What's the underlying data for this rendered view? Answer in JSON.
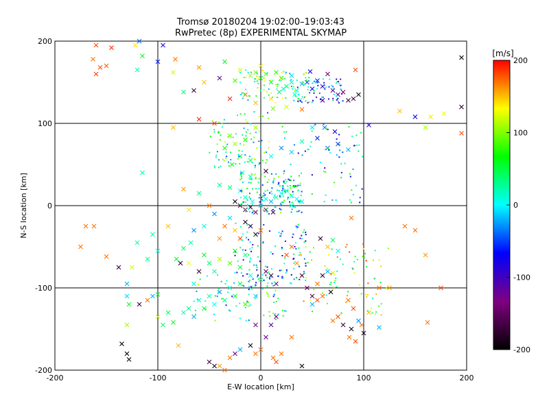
{
  "chart_data": {
    "type": "scatter",
    "title": "Tromsø 20180204 19:02:00–19:03:43",
    "subtitle": "RwPretec (8p) EXPERIMENTAL SKYMAP",
    "xlabel": "E-W location [km]",
    "ylabel": "N-S location [km]",
    "xlim": [
      -200,
      200
    ],
    "ylim": [
      -200,
      200
    ],
    "xticks": [
      -200,
      -100,
      0,
      100,
      200
    ],
    "yticks": [
      -200,
      -100,
      0,
      100,
      200
    ],
    "grid": true,
    "colorbar": {
      "label": "[m/s]",
      "min": -200,
      "max": 200,
      "ticks": [
        200,
        100,
        0,
        -100,
        -200
      ],
      "colormap": [
        "#000000",
        "#800080",
        "#0000ff",
        "#00ffff",
        "#00ff00",
        "#ffff00",
        "#ff0000"
      ]
    },
    "marker_legend_note": "",
    "points": [
      [
        -160,
        195,
        180,
        "x"
      ],
      [
        -145,
        192,
        190,
        "x"
      ],
      [
        -122,
        195,
        140,
        "x"
      ],
      [
        -118,
        200,
        -40,
        "x"
      ],
      [
        -95,
        195,
        -90,
        "x"
      ],
      [
        -163,
        178,
        170,
        "x"
      ],
      [
        -156,
        168,
        180,
        "x"
      ],
      [
        -150,
        170,
        175,
        "x"
      ],
      [
        -160,
        160,
        185,
        "x"
      ],
      [
        -120,
        165,
        20,
        "x"
      ],
      [
        -115,
        182,
        60,
        "x"
      ],
      [
        -100,
        175,
        -60,
        "x"
      ],
      [
        -83,
        178,
        170,
        "x"
      ],
      [
        -85,
        162,
        120,
        "x"
      ],
      [
        -60,
        168,
        160,
        "x"
      ],
      [
        -55,
        150,
        150,
        "x"
      ],
      [
        -40,
        155,
        -120,
        "x"
      ],
      [
        -25,
        152,
        80,
        "x"
      ],
      [
        -20,
        165,
        120,
        "x"
      ],
      [
        -10,
        158,
        110,
        "x"
      ],
      [
        -5,
        162,
        100,
        "x"
      ],
      [
        0,
        155,
        60,
        "x"
      ],
      [
        5,
        160,
        90,
        "x"
      ],
      [
        10,
        150,
        50,
        "x"
      ],
      [
        15,
        162,
        75,
        "x"
      ],
      [
        20,
        155,
        70,
        "x"
      ],
      [
        25,
        145,
        30,
        "x"
      ],
      [
        30,
        150,
        20,
        "x"
      ],
      [
        35,
        140,
        10,
        "x"
      ],
      [
        40,
        148,
        -20,
        "x"
      ],
      [
        45,
        150,
        -50,
        "x"
      ],
      [
        50,
        142,
        -80,
        "x"
      ],
      [
        55,
        152,
        -60,
        "x"
      ],
      [
        60,
        145,
        -100,
        "x"
      ],
      [
        70,
        140,
        -120,
        "x"
      ],
      [
        75,
        135,
        -110,
        "x"
      ],
      [
        80,
        138,
        -150,
        "x"
      ],
      [
        85,
        128,
        -170,
        "x"
      ],
      [
        90,
        130,
        -160,
        "x"
      ],
      [
        95,
        135,
        -190,
        "x"
      ],
      [
        65,
        160,
        -140,
        "x"
      ],
      [
        92,
        165,
        180,
        "x"
      ],
      [
        30,
        158,
        -10,
        "x"
      ],
      [
        22,
        142,
        15,
        "x"
      ],
      [
        38,
        128,
        0,
        "x"
      ],
      [
        -30,
        130,
        190,
        "x"
      ],
      [
        -15,
        135,
        170,
        "x"
      ],
      [
        -5,
        125,
        150,
        "x"
      ],
      [
        10,
        130,
        140,
        "x"
      ],
      [
        25,
        120,
        120,
        "x"
      ],
      [
        -65,
        140,
        -170,
        "x"
      ],
      [
        -75,
        138,
        40,
        "x"
      ],
      [
        0,
        170,
        140,
        "x"
      ],
      [
        -35,
        175,
        60,
        "x"
      ],
      [
        48,
        163,
        -75,
        "x"
      ],
      [
        40,
        117,
        170,
        "x"
      ],
      [
        60,
        128,
        -90,
        "x"
      ],
      [
        33,
        135,
        18,
        "x"
      ],
      [
        12,
        118,
        95,
        "x"
      ],
      [
        18,
        138,
        40,
        "x"
      ],
      [
        135,
        115,
        150,
        "x"
      ],
      [
        150,
        108,
        -70,
        "x"
      ],
      [
        165,
        108,
        140,
        "x"
      ],
      [
        178,
        112,
        130,
        "x"
      ],
      [
        195,
        120,
        -180,
        "x"
      ],
      [
        195,
        88,
        180,
        "x"
      ],
      [
        195,
        180,
        -200,
        "x"
      ],
      [
        160,
        95,
        110,
        "x"
      ],
      [
        105,
        98,
        -80,
        "x"
      ],
      [
        -85,
        95,
        150,
        "x"
      ],
      [
        -60,
        105,
        190,
        "x"
      ],
      [
        -45,
        100,
        180,
        "x"
      ],
      [
        -30,
        85,
        90,
        "x"
      ],
      [
        -35,
        70,
        75,
        "x"
      ],
      [
        -25,
        75,
        110,
        "x"
      ],
      [
        -15,
        80,
        70,
        "x"
      ],
      [
        -20,
        60,
        50,
        "x"
      ],
      [
        -10,
        55,
        40,
        "x"
      ],
      [
        -28,
        50,
        60,
        "x"
      ],
      [
        -18,
        40,
        20,
        "x"
      ],
      [
        -10,
        35,
        10,
        "x"
      ],
      [
        5,
        42,
        -180,
        "x"
      ],
      [
        10,
        60,
        0,
        "x"
      ],
      [
        20,
        70,
        -30,
        "x"
      ],
      [
        30,
        65,
        -10,
        "x"
      ],
      [
        40,
        78,
        20,
        "x"
      ],
      [
        55,
        82,
        -60,
        "x"
      ],
      [
        65,
        70,
        -40,
        "x"
      ],
      [
        75,
        75,
        -50,
        "x"
      ],
      [
        85,
        68,
        -20,
        "x"
      ],
      [
        50,
        95,
        -5,
        "x"
      ],
      [
        62,
        95,
        -30,
        "x"
      ],
      [
        72,
        90,
        -70,
        "x"
      ],
      [
        -5,
        95,
        110,
        "x"
      ],
      [
        -40,
        25,
        30,
        "x"
      ],
      [
        -30,
        22,
        40,
        "x"
      ],
      [
        -20,
        18,
        10,
        "x"
      ],
      [
        -15,
        10,
        20,
        "x"
      ],
      [
        -8,
        5,
        0,
        "x"
      ],
      [
        0,
        0,
        -10,
        "x"
      ],
      [
        5,
        8,
        10,
        "x"
      ],
      [
        10,
        5,
        -20,
        "x"
      ],
      [
        15,
        10,
        15,
        "x"
      ],
      [
        20,
        15,
        0,
        "x"
      ],
      [
        25,
        18,
        -5,
        "x"
      ],
      [
        30,
        12,
        10,
        "x"
      ],
      [
        35,
        8,
        5,
        "x"
      ],
      [
        40,
        5,
        0,
        "x"
      ],
      [
        -25,
        5,
        -190,
        "x"
      ],
      [
        -20,
        0,
        -170,
        "x"
      ],
      [
        -15,
        -5,
        -160,
        "x"
      ],
      [
        -10,
        -2,
        -180,
        "x"
      ],
      [
        -5,
        -8,
        -150,
        "x"
      ],
      [
        5,
        -5,
        -130,
        "x"
      ],
      [
        12,
        -8,
        -170,
        "x"
      ],
      [
        -60,
        15,
        30,
        "x"
      ],
      [
        -75,
        20,
        160,
        "x"
      ],
      [
        -70,
        -5,
        140,
        "x"
      ],
      [
        -50,
        0,
        170,
        "x"
      ],
      [
        -45,
        -10,
        -30,
        "x"
      ],
      [
        -30,
        -15,
        -10,
        "x"
      ],
      [
        -35,
        -25,
        170,
        "x"
      ],
      [
        -25,
        -30,
        150,
        "x"
      ],
      [
        -15,
        -20,
        -180,
        "x"
      ],
      [
        -10,
        -25,
        -170,
        "x"
      ],
      [
        -5,
        -35,
        -190,
        "x"
      ],
      [
        0,
        -30,
        170,
        "x"
      ],
      [
        -20,
        -40,
        180,
        "x"
      ],
      [
        -40,
        -40,
        160,
        "x"
      ],
      [
        -55,
        -25,
        10,
        "x"
      ],
      [
        -65,
        -30,
        -30,
        "x"
      ],
      [
        -90,
        -25,
        150,
        "x"
      ],
      [
        -105,
        -35,
        20,
        "x"
      ],
      [
        -120,
        -45,
        20,
        "x"
      ],
      [
        -100,
        -55,
        10,
        "x"
      ],
      [
        -110,
        -65,
        30,
        "x"
      ],
      [
        -125,
        -75,
        120,
        "x"
      ],
      [
        -138,
        -75,
        -170,
        "x"
      ],
      [
        -150,
        -62,
        170,
        "x"
      ],
      [
        -175,
        -50,
        170,
        "x"
      ],
      [
        -170,
        -25,
        170,
        "x"
      ],
      [
        -162,
        -25,
        170,
        "x"
      ],
      [
        -130,
        -110,
        -10,
        "x"
      ],
      [
        -118,
        -120,
        -170,
        "x"
      ],
      [
        -110,
        -115,
        170,
        "x"
      ],
      [
        -105,
        -110,
        -20,
        "x"
      ],
      [
        -100,
        -108,
        60,
        "x"
      ],
      [
        -90,
        -130,
        40,
        "x"
      ],
      [
        -95,
        -145,
        40,
        "x"
      ],
      [
        -85,
        -142,
        60,
        "x"
      ],
      [
        -75,
        -130,
        10,
        "x"
      ],
      [
        -70,
        -125,
        30,
        "x"
      ],
      [
        -65,
        -135,
        -20,
        "x"
      ],
      [
        -60,
        -115,
        10,
        "x"
      ],
      [
        -55,
        -125,
        50,
        "x"
      ],
      [
        -50,
        -110,
        20,
        "x"
      ],
      [
        -45,
        -120,
        0,
        "x"
      ],
      [
        -40,
        -105,
        -30,
        "x"
      ],
      [
        -35,
        -115,
        30,
        "x"
      ],
      [
        -30,
        -100,
        10,
        "x"
      ],
      [
        -25,
        -110,
        40,
        "x"
      ],
      [
        -20,
        -95,
        50,
        "x"
      ],
      [
        -15,
        -120,
        80,
        "x"
      ],
      [
        -10,
        -100,
        20,
        "x"
      ],
      [
        -5,
        -110,
        -10,
        "x"
      ],
      [
        0,
        -90,
        30,
        "x"
      ],
      [
        5,
        -80,
        -150,
        "x"
      ],
      [
        10,
        -85,
        -170,
        "x"
      ],
      [
        15,
        -95,
        -120,
        "x"
      ],
      [
        -45,
        -80,
        20,
        "x"
      ],
      [
        -50,
        -70,
        40,
        "x"
      ],
      [
        -55,
        -60,
        60,
        "x"
      ],
      [
        -40,
        -65,
        110,
        "x"
      ],
      [
        -30,
        -70,
        90,
        "x"
      ],
      [
        -25,
        -55,
        70,
        "x"
      ],
      [
        -20,
        -75,
        50,
        "x"
      ],
      [
        -15,
        -60,
        30,
        "x"
      ],
      [
        -10,
        -85,
        10,
        "x"
      ],
      [
        -60,
        -80,
        -170,
        "x"
      ],
      [
        -65,
        -95,
        10,
        "x"
      ],
      [
        -70,
        -70,
        130,
        "x"
      ],
      [
        -82,
        -65,
        60,
        "x"
      ],
      [
        -78,
        -70,
        -180,
        "x"
      ],
      [
        -75,
        -52,
        40,
        "x"
      ],
      [
        -68,
        -45,
        20,
        "x"
      ],
      [
        25,
        -60,
        180,
        "x"
      ],
      [
        30,
        -50,
        170,
        "x"
      ],
      [
        35,
        -70,
        160,
        "x"
      ],
      [
        40,
        -85,
        -170,
        "x"
      ],
      [
        45,
        -100,
        -150,
        "x"
      ],
      [
        50,
        -110,
        -160,
        "x"
      ],
      [
        55,
        -95,
        170,
        "x"
      ],
      [
        60,
        -85,
        -180,
        "x"
      ],
      [
        58,
        -40,
        -180,
        "x"
      ],
      [
        70,
        -42,
        40,
        "x"
      ],
      [
        75,
        -55,
        10,
        "x"
      ],
      [
        88,
        -15,
        170,
        "x"
      ],
      [
        65,
        -50,
        150,
        "x"
      ],
      [
        68,
        -105,
        -200,
        "x"
      ],
      [
        85,
        -115,
        170,
        "x"
      ],
      [
        90,
        -125,
        180,
        "x"
      ],
      [
        95,
        -140,
        -30,
        "x"
      ],
      [
        88,
        -150,
        -190,
        "x"
      ],
      [
        80,
        -145,
        -170,
        "x"
      ],
      [
        75,
        -135,
        180,
        "x"
      ],
      [
        70,
        -140,
        170,
        "x"
      ],
      [
        86,
        -160,
        170,
        "x"
      ],
      [
        92,
        -165,
        180,
        "x"
      ],
      [
        100,
        -155,
        -190,
        "x"
      ],
      [
        98,
        -145,
        170,
        "x"
      ],
      [
        105,
        -130,
        150,
        "x"
      ],
      [
        115,
        -100,
        170,
        "x"
      ],
      [
        125,
        -100,
        160,
        "x"
      ],
      [
        140,
        -25,
        170,
        "x"
      ],
      [
        150,
        -30,
        170,
        "x"
      ],
      [
        160,
        -60,
        160,
        "x"
      ],
      [
        162,
        -142,
        170,
        "x"
      ],
      [
        175,
        -100,
        180,
        "x"
      ],
      [
        115,
        -148,
        -20,
        "x"
      ],
      [
        -135,
        -168,
        -200,
        "x"
      ],
      [
        -130,
        -180,
        -200,
        "x"
      ],
      [
        -128,
        -187,
        -190,
        "x"
      ],
      [
        -130,
        -145,
        110,
        "x"
      ],
      [
        -80,
        -170,
        150,
        "x"
      ],
      [
        -50,
        -190,
        -170,
        "x"
      ],
      [
        -45,
        -195,
        -180,
        "x"
      ],
      [
        -40,
        -195,
        160,
        "x"
      ],
      [
        -35,
        -200,
        170,
        "x"
      ],
      [
        -30,
        -185,
        170,
        "x"
      ],
      [
        -25,
        -180,
        -120,
        "x"
      ],
      [
        -20,
        -175,
        -20,
        "x"
      ],
      [
        -10,
        -170,
        -190,
        "x"
      ],
      [
        -5,
        -180,
        170,
        "x"
      ],
      [
        0,
        -175,
        170,
        "x"
      ],
      [
        5,
        -160,
        -120,
        "x"
      ],
      [
        10,
        -145,
        -110,
        "x"
      ],
      [
        15,
        -135,
        -150,
        "x"
      ],
      [
        -5,
        -145,
        -130,
        "x"
      ],
      [
        12,
        -185,
        170,
        "x"
      ],
      [
        15,
        -190,
        180,
        "x"
      ],
      [
        20,
        -180,
        170,
        "x"
      ],
      [
        30,
        -160,
        170,
        "x"
      ],
      [
        40,
        -195,
        -200,
        "x"
      ],
      [
        50,
        -120,
        -20,
        "x"
      ],
      [
        55,
        -115,
        180,
        "x"
      ],
      [
        60,
        -110,
        170,
        "x"
      ],
      [
        65,
        -80,
        -20,
        "x"
      ],
      [
        70,
        -82,
        120,
        "x"
      ],
      [
        -115,
        40,
        20,
        "x"
      ],
      [
        -128,
        -120,
        60,
        "x"
      ],
      [
        -100,
        -135,
        120,
        "x"
      ],
      [
        -130,
        -95,
        -20,
        "x"
      ],
      [
        30,
        0,
        20,
        "x"
      ]
    ]
  }
}
